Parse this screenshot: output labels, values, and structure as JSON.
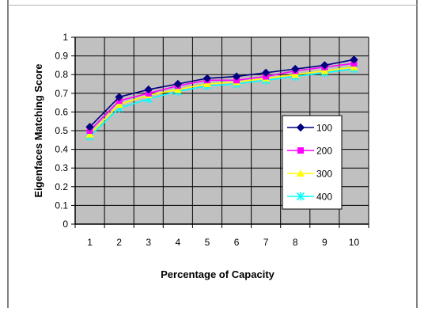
{
  "chart_data": {
    "type": "line",
    "title": "",
    "xlabel": "Percentage of Capacity",
    "ylabel": "Eigenfaces Matching Score",
    "categories": [
      "1",
      "2",
      "3",
      "4",
      "5",
      "6",
      "7",
      "8",
      "9",
      "10"
    ],
    "ylim": [
      0,
      1
    ],
    "yticks": [
      "0",
      "0.1",
      "0.2",
      "0.3",
      "0.4",
      "0.5",
      "0.6",
      "0.7",
      "0.8",
      "0.9",
      "1"
    ],
    "grid": true,
    "legend_position": "right",
    "series": [
      {
        "name": "100",
        "color": "#000080",
        "marker": "diamond",
        "values": [
          0.52,
          0.68,
          0.72,
          0.75,
          0.78,
          0.79,
          0.81,
          0.83,
          0.85,
          0.88
        ]
      },
      {
        "name": "200",
        "color": "#ff00ff",
        "marker": "square",
        "values": [
          0.5,
          0.66,
          0.7,
          0.74,
          0.77,
          0.77,
          0.79,
          0.82,
          0.84,
          0.86
        ]
      },
      {
        "name": "300",
        "color": "#ffff00",
        "marker": "triangle",
        "values": [
          0.48,
          0.64,
          0.69,
          0.72,
          0.75,
          0.76,
          0.78,
          0.8,
          0.82,
          0.84
        ]
      },
      {
        "name": "400",
        "color": "#00ffff",
        "marker": "star",
        "values": [
          0.47,
          0.62,
          0.67,
          0.71,
          0.74,
          0.75,
          0.77,
          0.79,
          0.81,
          0.83
        ]
      }
    ],
    "colors": {
      "plot_background": "#c0c0c0",
      "gridline": "#000000",
      "axis": "#000000"
    }
  }
}
